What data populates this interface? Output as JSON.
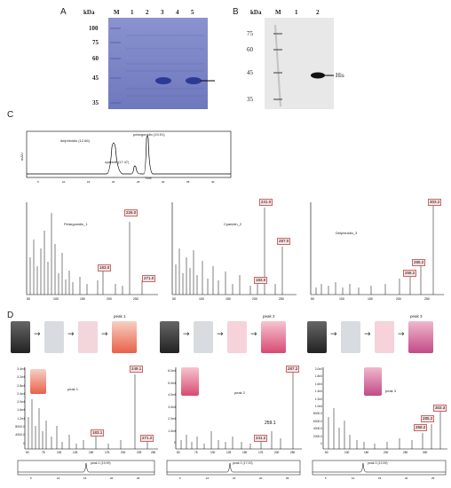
{
  "panels": {
    "a": "A",
    "b": "B",
    "c": "C",
    "d": "D"
  },
  "gel_a": {
    "kda_label": "kDa",
    "lanes": [
      "M",
      "1",
      "2",
      "3",
      "4",
      "5"
    ],
    "markers": [
      "100",
      "75",
      "60",
      "45",
      "35"
    ]
  },
  "gel_b": {
    "kda_label": "kDa",
    "lanes": [
      "M",
      "1",
      "2"
    ],
    "markers": [
      "75",
      "60",
      "45",
      "35"
    ],
    "band_label": "His"
  },
  "hplc": {
    "ylabel": "mAU",
    "peaks": [
      "delphinidin (12.66)",
      "cyanidin(17.47)",
      "pelargonidin (19.91)"
    ],
    "xlabel": "Time"
  },
  "ms_c": [
    {
      "compound": "Pelargonidin_1",
      "labels": [
        "183.0",
        "226.0",
        "271.0"
      ]
    },
    {
      "compound": "Cyanidin_2",
      "labels": [
        "183.0",
        "241.0",
        "287.0"
      ]
    },
    {
      "compound": "Delphinidin_3",
      "labels": [
        "258.2",
        "285.2",
        "303.2"
      ]
    }
  ],
  "d_rows": [
    {
      "peak": "peak 1",
      "ms_labels": [
        "183.1",
        "271.2",
        "249.1"
      ],
      "chrom": "peak 1 (19.99)"
    },
    {
      "peak": "peak 2",
      "ms_labels": [
        "241.2",
        "287.2",
        "259.1"
      ],
      "chrom": "peak 2 (17.00)"
    },
    {
      "peak": "peak 3",
      "ms_labels": [
        "258.2",
        "285.2",
        "303.3"
      ],
      "chrom": "peak 3 (12.59)"
    }
  ],
  "ms_d_yticks": {
    "p1": [
      "3.4e4",
      "3.2e4",
      "2.8e4",
      "2.4e4",
      "2.0e4",
      "1.6e4",
      "1.2e4",
      "8000.0",
      "4000.0",
      "0"
    ],
    "p2": [
      "6.0e4",
      "5.0e4",
      "4.0e4",
      "3.0e4",
      "2.0e4",
      "1.0e4",
      "0"
    ],
    "p3": [
      "2.0e4",
      "1.8e4",
      "1.6e4",
      "1.4e4",
      "1.2e4",
      "1.0e4",
      "8000.0",
      "6000.0",
      "4000.0",
      "2000.0",
      "0"
    ]
  },
  "colors": {
    "gel_a_bg": "#7d86c4",
    "tube_pink": "#f3b8c4",
    "tube_red": "#e9604a",
    "tube_magenta": "#d44a7a"
  }
}
